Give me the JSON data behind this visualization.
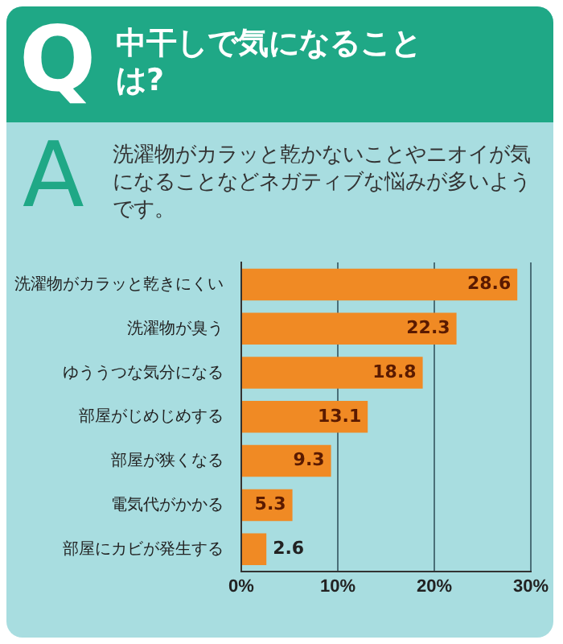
{
  "chart_data": {
    "type": "bar",
    "orientation": "horizontal",
    "title": "中干しで気になることは?",
    "subtitle": "洗濯物がカラッと乾かないことやニオイが気になることなどネガティブな悩みが多いようです。",
    "annotations": [
      "Q",
      "A"
    ],
    "categories": [
      "洗濯物がカラッと乾きにくい",
      "洗濯物が臭う",
      "ゆううつな気分になる",
      "部屋がじめじめする",
      "部屋が狭くなる",
      "電気代がかかる",
      "部屋にカビが発生する"
    ],
    "values": [
      28.6,
      22.3,
      18.8,
      13.1,
      9.3,
      5.3,
      2.6
    ],
    "color": "#f08a24",
    "xlim": [
      0,
      30
    ],
    "xticks": [
      {
        "value": 0,
        "label": "0%"
      },
      {
        "value": 10,
        "label": "10%"
      },
      {
        "value": 20,
        "label": "20%"
      },
      {
        "value": 30,
        "label": "30%"
      }
    ],
    "grid": "x",
    "data_labels": true
  }
}
